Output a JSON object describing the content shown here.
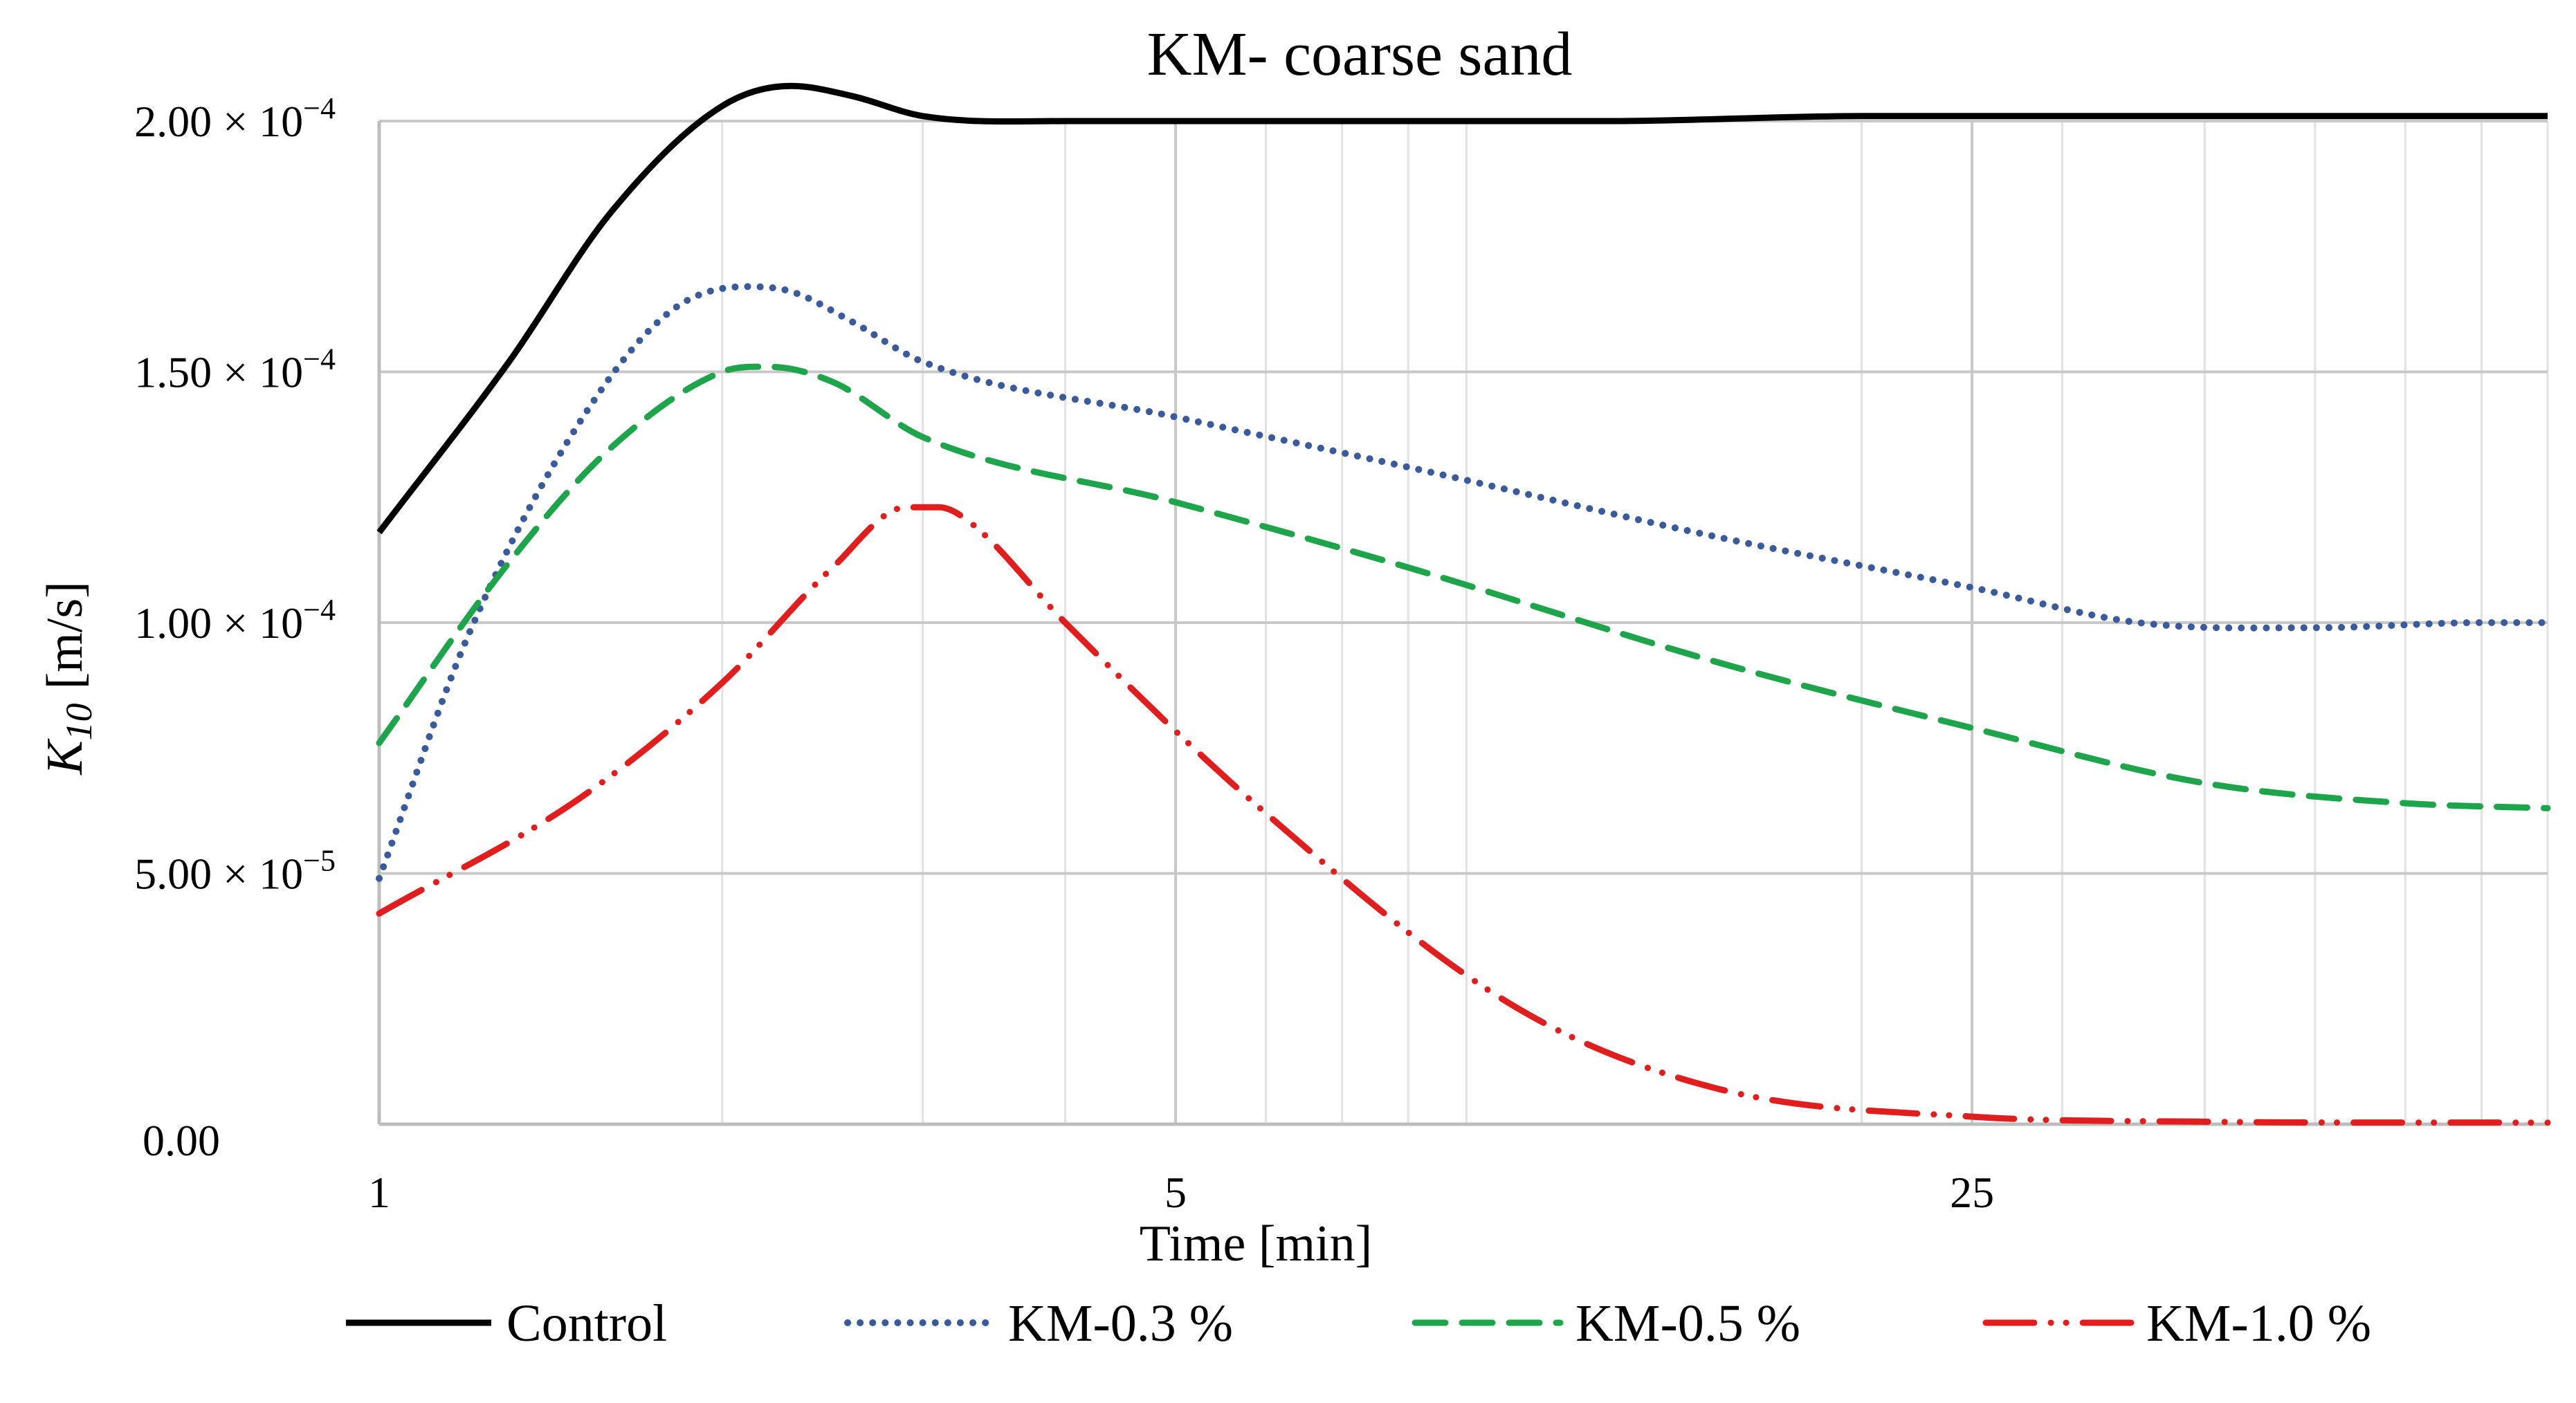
{
  "chart_data": {
    "type": "line",
    "title": "KM- coarse sand",
    "xlabel": "Time [min]",
    "ylabel_main": "K",
    "ylabel_sub": "10",
    "ylabel_unit": "[m/s]",
    "x_scale": "log",
    "xlim": [
      1,
      80
    ],
    "ylim": [
      0,
      0.0002
    ],
    "x_ticks": [
      {
        "value": 1,
        "label": "1"
      },
      {
        "value": 5,
        "label": "5"
      },
      {
        "value": 25,
        "label": "25"
      }
    ],
    "y_ticks": [
      {
        "value": 0,
        "mantissa": "0.00",
        "exponent": ""
      },
      {
        "value": 5e-05,
        "mantissa": "5.00 × 10",
        "exponent": "−5"
      },
      {
        "value": 0.0001,
        "mantissa": "1.00 × 10",
        "exponent": "−4"
      },
      {
        "value": 0.00015,
        "mantissa": "1.50 × 10",
        "exponent": "−4"
      },
      {
        "value": 0.0002,
        "mantissa": "2.00 × 10",
        "exponent": "−4"
      }
    ],
    "grid": true,
    "legend_position": "bottom",
    "series": [
      {
        "name": "Control",
        "color": "#000000",
        "style": "solid",
        "x": [
          1,
          1.3,
          1.6,
          2.0,
          2.3,
          2.6,
          3.0,
          4.0,
          6.0,
          8.0,
          12,
          20,
          40,
          80
        ],
        "y": [
          0.000118,
          0.000152,
          0.000182,
          0.000203,
          0.000207,
          0.000205,
          0.000201,
          0.0002,
          0.0002,
          0.0002,
          0.0002,
          0.000201,
          0.000201,
          0.000201
        ]
      },
      {
        "name": "KM-0.3 %",
        "color": "#3a5a9c",
        "style": "dotted",
        "x": [
          1,
          1.2,
          1.5,
          1.8,
          2.1,
          2.3,
          2.6,
          3.0,
          5.0,
          8.0,
          15,
          25,
          35,
          50,
          70,
          80
        ],
        "y": [
          4.9e-05,
          9.8e-05,
          0.00014,
          0.000162,
          0.000167,
          0.000166,
          0.00016,
          0.000152,
          0.000141,
          0.000131,
          0.000117,
          0.000107,
          0.0001,
          9.9e-05,
          0.0001,
          0.0001
        ]
      },
      {
        "name": "KM-0.5 %",
        "color": "#1ea44a",
        "style": "dashed",
        "x": [
          1,
          1.3,
          1.6,
          2.0,
          2.2,
          2.5,
          3.0,
          5.0,
          8.0,
          15,
          25,
          40,
          60,
          80
        ],
        "y": [
          7.6e-05,
          0.000112,
          0.000135,
          0.00015,
          0.000151,
          0.000148,
          0.000137,
          0.000124,
          0.000111,
          9.2e-05,
          7.9e-05,
          6.8e-05,
          6.4e-05,
          6.3e-05
        ]
      },
      {
        "name": "KM-1.0 %",
        "color": "#e01e1e",
        "style": "dashdotdot",
        "x": [
          1,
          1.5,
          2.0,
          2.5,
          2.9,
          3.1,
          3.3,
          4.0,
          6.0,
          10,
          15,
          25,
          40,
          80
        ],
        "y": [
          4.2e-05,
          6.5e-05,
          8.8e-05,
          0.000111,
          0.000123,
          0.000123,
          0.00012,
          0.0001,
          6.2e-05,
          2.3e-05,
          7e-06,
          1.5e-06,
          5e-07,
          3e-07
        ]
      }
    ]
  }
}
